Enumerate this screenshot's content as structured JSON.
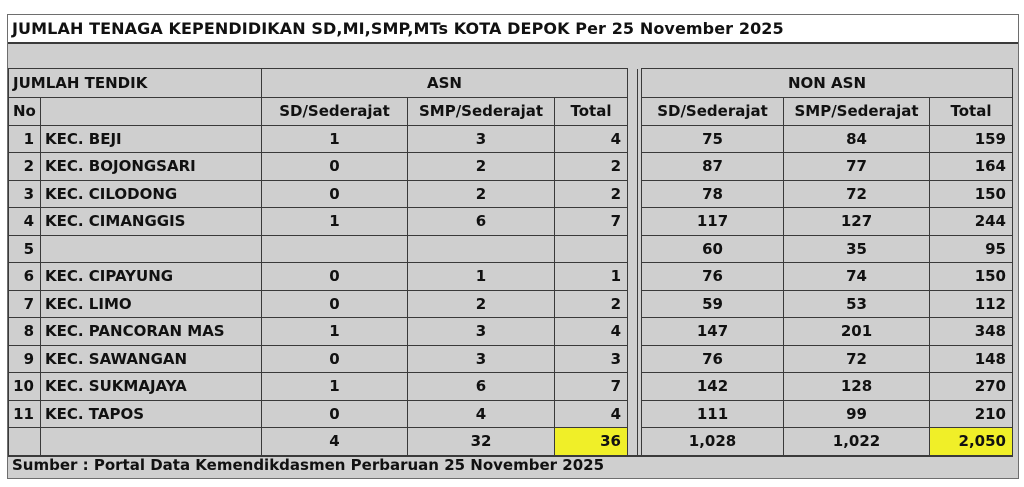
{
  "title": "JUMLAH TENAGA KEPENDIDIKAN SD,MI,SMP,MTs KOTA DEPOK Per 25 November 2025",
  "header": {
    "jumlah_tendik": "JUMLAH TENDIK",
    "asn": "ASN",
    "non_asn": "NON ASN",
    "no": "No",
    "sd": "SD/Sederajat",
    "smp": "SMP/Sederajat",
    "total": "Total"
  },
  "rows": [
    {
      "no": "1",
      "name": "KEC. BEJI",
      "asn_sd": "1",
      "asn_smp": "3",
      "asn_total": "4",
      "non_sd": "75",
      "non_smp": "84",
      "non_total": "159"
    },
    {
      "no": "2",
      "name": "KEC. BOJONGSARI",
      "asn_sd": "0",
      "asn_smp": "2",
      "asn_total": "2",
      "non_sd": "87",
      "non_smp": "77",
      "non_total": "164"
    },
    {
      "no": "3",
      "name": "KEC. CILODONG",
      "asn_sd": "0",
      "asn_smp": "2",
      "asn_total": "2",
      "non_sd": "78",
      "non_smp": "72",
      "non_total": "150"
    },
    {
      "no": "4",
      "name": "KEC. CIMANGGIS",
      "asn_sd": "1",
      "asn_smp": "6",
      "asn_total": "7",
      "non_sd": "117",
      "non_smp": "127",
      "non_total": "244"
    },
    {
      "no": "5",
      "name": "",
      "asn_sd": "",
      "asn_smp": "",
      "asn_total": "",
      "non_sd": "60",
      "non_smp": "35",
      "non_total": "95"
    },
    {
      "no": "6",
      "name": "KEC. CIPAYUNG",
      "asn_sd": "0",
      "asn_smp": "1",
      "asn_total": "1",
      "non_sd": "76",
      "non_smp": "74",
      "non_total": "150"
    },
    {
      "no": "7",
      "name": "KEC. LIMO",
      "asn_sd": "0",
      "asn_smp": "2",
      "asn_total": "2",
      "non_sd": "59",
      "non_smp": "53",
      "non_total": "112"
    },
    {
      "no": "8",
      "name": "KEC. PANCORAN MAS",
      "asn_sd": "1",
      "asn_smp": "3",
      "asn_total": "4",
      "non_sd": "147",
      "non_smp": "201",
      "non_total": "348"
    },
    {
      "no": "9",
      "name": "KEC. SAWANGAN",
      "asn_sd": "0",
      "asn_smp": "3",
      "asn_total": "3",
      "non_sd": "76",
      "non_smp": "72",
      "non_total": "148"
    },
    {
      "no": "10",
      "name": "KEC. SUKMAJAYA",
      "asn_sd": "1",
      "asn_smp": "6",
      "asn_total": "7",
      "non_sd": "142",
      "non_smp": "128",
      "non_total": "270"
    },
    {
      "no": "11",
      "name": "KEC. TAPOS",
      "asn_sd": "0",
      "asn_smp": "4",
      "asn_total": "4",
      "non_sd": "111",
      "non_smp": "99",
      "non_total": "210"
    }
  ],
  "totals": {
    "asn_sd": "4",
    "asn_smp": "32",
    "asn_total": "36",
    "non_sd": "1,028",
    "non_smp": "1,022",
    "non_total": "2,050"
  },
  "source": "Sumber : Portal Data Kemendikdasmen Perbaruan 25 November 2025",
  "colors": {
    "background": "#cfcfcf",
    "highlight": "#f0ef28",
    "border": "#3a3a3a"
  }
}
